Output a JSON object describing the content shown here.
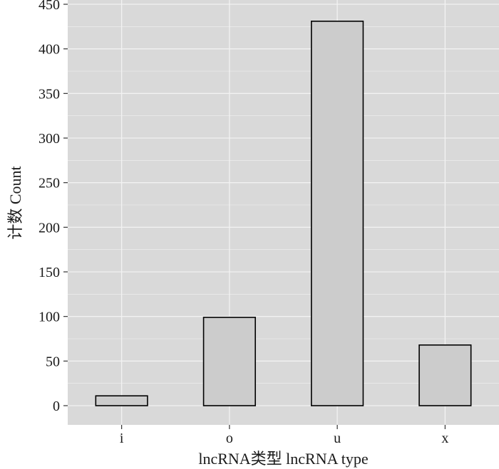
{
  "chart_data": {
    "type": "bar",
    "categories": [
      "i",
      "o",
      "u",
      "x"
    ],
    "values": [
      11,
      99,
      431,
      68
    ],
    "xlabel": "lncRNA类型  lncRNA type",
    "ylabel": "计数 Count",
    "ylim": [
      0,
      450
    ],
    "yticks": [
      0,
      50,
      100,
      150,
      200,
      250,
      300,
      350,
      400,
      450
    ],
    "grid": true,
    "colors": {
      "panel_background": "#d9d9d9",
      "grid": "#f2f2f2",
      "bar_fill": "#cccccc",
      "bar_stroke": "#000000"
    }
  }
}
